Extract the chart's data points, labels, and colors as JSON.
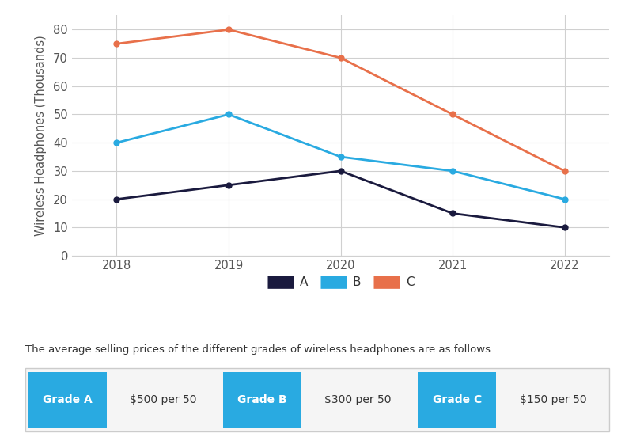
{
  "years": [
    2018,
    2019,
    2020,
    2021,
    2022
  ],
  "series_A": [
    20,
    25,
    30,
    15,
    10
  ],
  "series_B": [
    40,
    50,
    35,
    30,
    20
  ],
  "series_C": [
    75,
    80,
    70,
    50,
    30
  ],
  "color_A": "#1a1a3e",
  "color_B": "#29aae1",
  "color_C": "#e8704a",
  "ylabel": "Wireless Headphones (Thousands)",
  "ylim": [
    0,
    85
  ],
  "yticks": [
    0,
    10,
    20,
    30,
    40,
    50,
    60,
    70,
    80
  ],
  "background_color": "#ffffff",
  "grid_color": "#d0d0d0",
  "legend_labels": [
    "A",
    "B",
    "C"
  ],
  "info_text": "The average selling prices of the different grades of wireless headphones are as follows:",
  "grade_labels": [
    "Grade A",
    "Grade B",
    "Grade C"
  ],
  "grade_prices": [
    "$500 per 50",
    "$300 per 50",
    "$150 per 50"
  ],
  "grade_button_color": "#29aae1",
  "grade_button_text_color": "#ffffff",
  "grade_price_text_color": "#333333",
  "marker_size": 5,
  "line_width": 2,
  "table_border_color": "#cccccc"
}
